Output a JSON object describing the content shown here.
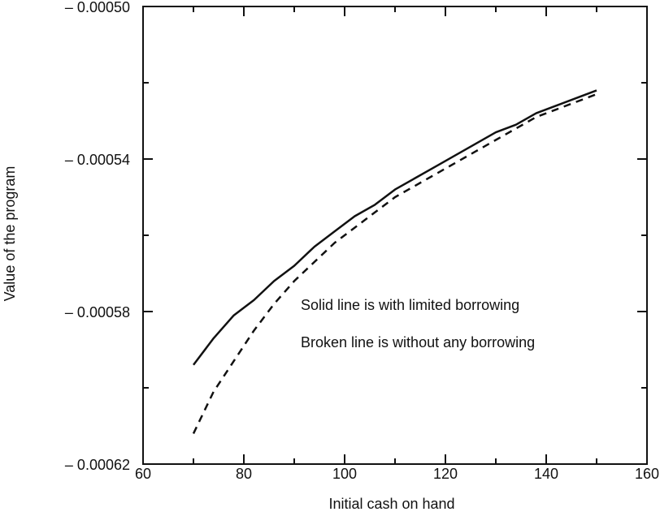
{
  "chart_data": {
    "type": "line",
    "title": "",
    "xlabel": "Initial cash on hand",
    "ylabel": "Value of the program",
    "xlim": [
      60,
      160
    ],
    "ylim": [
      -0.00062,
      -0.0005
    ],
    "x_ticks": [
      60,
      80,
      100,
      120,
      140,
      160
    ],
    "y_ticks": [
      -0.00062,
      -0.00058,
      -0.00054,
      -0.0005
    ],
    "x_tick_labels": [
      "60",
      "80",
      "100",
      "120",
      "140",
      "160"
    ],
    "y_tick_labels": [
      "– 0.00062",
      "– 0.00058",
      "– 0.00054",
      "– 0.00050"
    ],
    "grid": false,
    "legend": "none",
    "annotations": [
      "Solid line is with limited borrowing",
      "Broken line is without any borrowing"
    ],
    "series": [
      {
        "style": "solid",
        "color": "#111111",
        "x": [
          70,
          74,
          78,
          82,
          86,
          90,
          94,
          98,
          102,
          106,
          110,
          114,
          118,
          122,
          126,
          130,
          134,
          138,
          142,
          146,
          150
        ],
        "y": [
          -0.000594,
          -0.000587,
          -0.000581,
          -0.000577,
          -0.000572,
          -0.000568,
          -0.000563,
          -0.000559,
          -0.000555,
          -0.000552,
          -0.000548,
          -0.000545,
          -0.000542,
          -0.000539,
          -0.000536,
          -0.000533,
          -0.000531,
          -0.000528,
          -0.000526,
          -0.000524,
          -0.000522
        ]
      },
      {
        "style": "dashed",
        "color": "#111111",
        "x": [
          70,
          74,
          78,
          82,
          86,
          90,
          94,
          98,
          102,
          106,
          110,
          114,
          118,
          122,
          126,
          130,
          134,
          138,
          142,
          146,
          150
        ],
        "y": [
          -0.000612,
          -0.000601,
          -0.000593,
          -0.000585,
          -0.000578,
          -0.000572,
          -0.000567,
          -0.000562,
          -0.000558,
          -0.000554,
          -0.00055,
          -0.000547,
          -0.000544,
          -0.000541,
          -0.000538,
          -0.000535,
          -0.000532,
          -0.000529,
          -0.000527,
          -0.000525,
          -0.000523
        ]
      }
    ]
  }
}
